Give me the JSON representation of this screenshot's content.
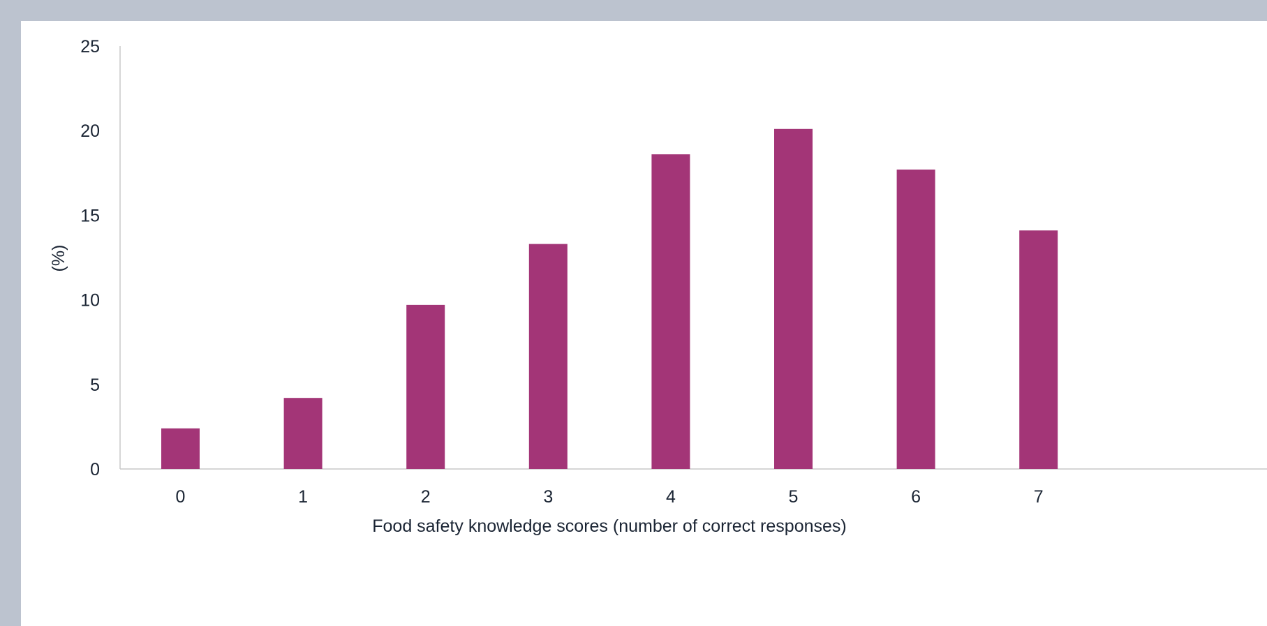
{
  "chart_data": {
    "type": "bar",
    "categories": [
      "0",
      "1",
      "2",
      "3",
      "4",
      "5",
      "6",
      "7"
    ],
    "values": [
      2.4,
      4.2,
      9.7,
      13.3,
      18.6,
      20.1,
      17.7,
      14.1
    ],
    "title": "",
    "xlabel": "Food safety knowledge scores (number of correct responses)",
    "ylabel": "(%)",
    "ylim": [
      0,
      25
    ],
    "yticks": [
      "0",
      "5",
      "10",
      "15",
      "20",
      "25"
    ],
    "grid": false,
    "bar_color": "#a33577",
    "axis_color": "#c8c8c8",
    "background_color": "#bcc3cf"
  }
}
